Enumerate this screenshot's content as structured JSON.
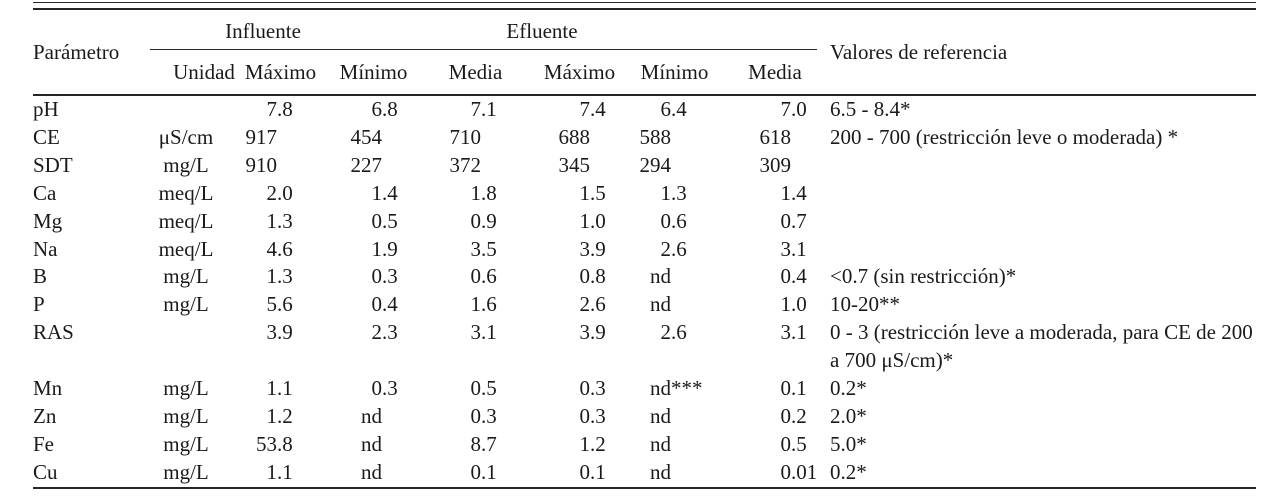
{
  "table": {
    "param_header": "Parámetro",
    "group_influente": "Influente",
    "group_efluente": "Efluente",
    "ref_header": "Valores de referencia",
    "subheaders": [
      "Unidad",
      "Máximo",
      "Mínimo",
      "Media",
      "Máximo",
      "Mínimo",
      "Media"
    ],
    "rows": [
      {
        "param": "pH",
        "unidad": "",
        "vals": [
          "7.8",
          "6.8",
          "7.1",
          "7.4",
          "6.4",
          "7.0"
        ],
        "ref": "6.5 - 8.4*"
      },
      {
        "param": "CE",
        "unidad": "μS/cm",
        "vals": [
          "917",
          "454",
          "710",
          "688",
          "588",
          "618"
        ],
        "ref": "200 - 700 (restricción leve o moderada) *"
      },
      {
        "param": "SDT",
        "unidad": "mg/L",
        "vals": [
          "910",
          "227",
          "372",
          "345",
          "294",
          "309"
        ],
        "ref": ""
      },
      {
        "param": "Ca",
        "unidad": "meq/L",
        "vals": [
          "2.0",
          "1.4",
          "1.8",
          "1.5",
          "1.3",
          "1.4"
        ],
        "ref": ""
      },
      {
        "param": "Mg",
        "unidad": "meq/L",
        "vals": [
          "1.3",
          "0.5",
          "0.9",
          "1.0",
          "0.6",
          "0.7"
        ],
        "ref": ""
      },
      {
        "param": "Na",
        "unidad": "meq/L",
        "vals": [
          "4.6",
          "1.9",
          "3.5",
          "3.9",
          "2.6",
          "3.1"
        ],
        "ref": ""
      },
      {
        "param": "B",
        "unidad": "mg/L",
        "vals": [
          "1.3",
          "0.3",
          "0.6",
          "0.8",
          "nd",
          "0.4"
        ],
        "ref": "<0.7 (sin restricción)*"
      },
      {
        "param": "P",
        "unidad": "mg/L",
        "vals": [
          "5.6",
          "0.4",
          "1.6",
          "2.6",
          "nd",
          "1.0"
        ],
        "ref": "10-20**"
      },
      {
        "param": "RAS",
        "unidad": "",
        "vals": [
          "3.9",
          "2.3",
          "3.1",
          "3.9",
          "2.6",
          "3.1"
        ],
        "ref": "0 - 3 (restricción leve a moderada, para CE de 200 a 700 μS/cm)*"
      },
      {
        "param": "Mn",
        "unidad": "mg/L",
        "vals": [
          "1.1",
          "0.3",
          "0.5",
          "0.3",
          "nd***",
          "0.1"
        ],
        "ref": "0.2*"
      },
      {
        "param": "Zn",
        "unidad": "mg/L",
        "vals": [
          "1.2",
          "nd",
          "0.3",
          "0.3",
          "nd",
          "0.2"
        ],
        "ref": "2.0*"
      },
      {
        "param": "Fe",
        "unidad": "mg/L",
        "vals": [
          "53.8",
          "nd",
          "8.7",
          "1.2",
          "nd",
          "0.5"
        ],
        "ref": "5.0*"
      },
      {
        "param": "Cu",
        "unidad": "mg/L",
        "vals": [
          "1.1",
          "nd",
          "0.1",
          "0.1",
          "nd",
          "0.01"
        ],
        "ref": "0.2*"
      }
    ]
  }
}
